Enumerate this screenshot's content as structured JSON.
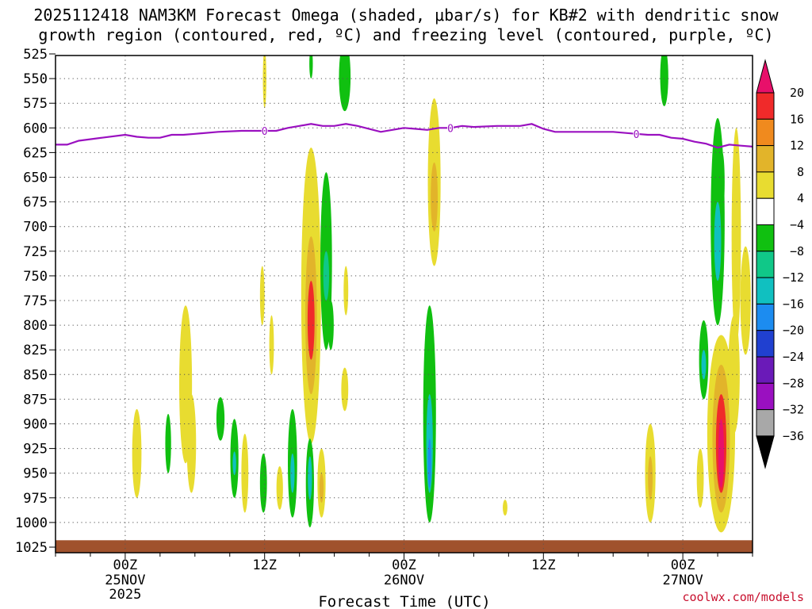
{
  "chart_data": {
    "type": "heatmap",
    "title": [
      "2025112418 NAM3KM Forecast Omega (shaded, μbar/s) for KB#2 with dendritic snow",
      "growth region (contoured, red, ºC) and freezing level (contoured, purple, ºC)"
    ],
    "xlabel": "Forecast Time (UTC)",
    "credit": "coolwx.com/models",
    "y_ticks": [
      "525",
      "550",
      "575",
      "600",
      "625",
      "650",
      "675",
      "700",
      "725",
      "750",
      "775",
      "800",
      "825",
      "850",
      "875",
      "900",
      "925",
      "950",
      "975",
      "1000",
      "1025"
    ],
    "y_values": [
      525,
      550,
      575,
      600,
      625,
      650,
      675,
      700,
      725,
      750,
      775,
      800,
      825,
      850,
      875,
      900,
      925,
      950,
      975,
      1000,
      1025
    ],
    "ylim": [
      525,
      1025
    ],
    "x_range_hours": [
      -6,
      54
    ],
    "x_ticks": [
      {
        "hour": 0,
        "label": "00Z",
        "date": "25NOV",
        "year": "2025"
      },
      {
        "hour": 12,
        "label": "12Z",
        "date": "",
        "year": ""
      },
      {
        "hour": 24,
        "label": "00Z",
        "date": "26NOV",
        "year": ""
      },
      {
        "hour": 36,
        "label": "12Z",
        "date": "",
        "year": ""
      },
      {
        "hour": 48,
        "label": "00Z",
        "date": "27NOV",
        "year": ""
      }
    ],
    "colorbar": {
      "levels": [
        "20",
        "16",
        "12",
        "8",
        "4",
        "−4",
        "−8",
        "−12",
        "−16",
        "−20",
        "−24",
        "−28",
        "−32",
        "−36"
      ],
      "colors": [
        "#e8106a",
        "#f02a2a",
        "#f08a1e",
        "#e2b42a",
        "#e8dc30",
        "#ffffff",
        "#10c010",
        "#10c888",
        "#10c0c0",
        "#1c8cf0",
        "#2040d0",
        "#6a1ab8",
        "#9a10c0",
        "#a8a8a8",
        "#000000"
      ]
    },
    "freezing_level": {
      "label": "0",
      "label_hours": [
        12,
        28,
        44
      ],
      "hours": [
        -6,
        -5,
        -4,
        -2,
        0,
        1,
        2,
        3,
        4,
        5,
        6,
        8,
        10,
        12,
        13,
        14,
        15,
        16,
        17,
        18,
        19,
        20,
        22,
        24,
        25,
        26,
        27,
        28,
        29,
        30,
        32,
        34,
        35,
        36,
        37,
        38,
        40,
        42,
        44,
        45,
        46,
        47,
        48,
        49,
        50,
        51,
        52,
        53,
        54
      ],
      "pressure": [
        617,
        617,
        613,
        610,
        607,
        609,
        610,
        610,
        607,
        607,
        606,
        604,
        603,
        603,
        603,
        600,
        598,
        596,
        598,
        598,
        596,
        598,
        604,
        600,
        601,
        602,
        600,
        600,
        598,
        599,
        598,
        598,
        596,
        601,
        604,
        604,
        604,
        604,
        606,
        607,
        607,
        610,
        611,
        614,
        616,
        620,
        617,
        618,
        619
      ]
    },
    "omega_blobs": [
      {
        "h": 12.0,
        "p": 550,
        "dh": 0.15,
        "dp": 30,
        "v": 5
      },
      {
        "h": 16.0,
        "p": 535,
        "dh": 0.15,
        "dp": 15,
        "v": -5
      },
      {
        "h": 18.9,
        "p": 548,
        "dh": 0.5,
        "dp": 35,
        "v": -6
      },
      {
        "h": 46.4,
        "p": 548,
        "dh": 0.35,
        "dp": 30,
        "v": -5
      },
      {
        "h": 26.6,
        "p": 655,
        "dh": 0.55,
        "dp": 85,
        "v": 6
      },
      {
        "h": 26.6,
        "p": 670,
        "dh": 0.3,
        "dp": 35,
        "v": 9
      },
      {
        "h": 16.0,
        "p": 770,
        "dh": 0.85,
        "dp": 150,
        "v": 6
      },
      {
        "h": 16.0,
        "p": 790,
        "dh": 0.5,
        "dp": 80,
        "v": 10
      },
      {
        "h": 16.0,
        "p": 795,
        "dh": 0.3,
        "dp": 40,
        "v": 18
      },
      {
        "h": 17.3,
        "p": 735,
        "dh": 0.5,
        "dp": 90,
        "v": -6
      },
      {
        "h": 17.3,
        "p": 750,
        "dh": 0.25,
        "dp": 25,
        "v": -10
      },
      {
        "h": 17.7,
        "p": 800,
        "dh": 0.25,
        "dp": 25,
        "v": -5
      },
      {
        "h": 19.0,
        "p": 765,
        "dh": 0.2,
        "dp": 25,
        "v": 5
      },
      {
        "h": 11.8,
        "p": 770,
        "dh": 0.2,
        "dp": 30,
        "v": 5
      },
      {
        "h": 12.6,
        "p": 820,
        "dh": 0.2,
        "dp": 30,
        "v": 5
      },
      {
        "h": 18.9,
        "p": 865,
        "dh": 0.3,
        "dp": 22,
        "v": 5
      },
      {
        "h": 26.2,
        "p": 890,
        "dh": 0.55,
        "dp": 110,
        "v": -6
      },
      {
        "h": 26.2,
        "p": 920,
        "dh": 0.28,
        "dp": 50,
        "v": -12
      },
      {
        "h": 26.2,
        "p": 940,
        "dh": 0.15,
        "dp": 25,
        "v": -16
      },
      {
        "h": 5.2,
        "p": 860,
        "dh": 0.55,
        "dp": 80,
        "v": 5
      },
      {
        "h": 5.7,
        "p": 920,
        "dh": 0.4,
        "dp": 50,
        "v": 5
      },
      {
        "h": 1.0,
        "p": 930,
        "dh": 0.4,
        "dp": 45,
        "v": 5
      },
      {
        "h": 3.7,
        "p": 920,
        "dh": 0.25,
        "dp": 30,
        "v": -6
      },
      {
        "h": 8.2,
        "p": 895,
        "dh": 0.35,
        "dp": 22,
        "v": -6
      },
      {
        "h": 9.4,
        "p": 935,
        "dh": 0.35,
        "dp": 40,
        "v": -6
      },
      {
        "h": 9.4,
        "p": 940,
        "dh": 0.15,
        "dp": 12,
        "v": -12
      },
      {
        "h": 10.3,
        "p": 950,
        "dh": 0.3,
        "dp": 40,
        "v": 5
      },
      {
        "h": 11.9,
        "p": 960,
        "dh": 0.3,
        "dp": 30,
        "v": -6
      },
      {
        "h": 13.3,
        "p": 965,
        "dh": 0.28,
        "dp": 22,
        "v": 5
      },
      {
        "h": 14.4,
        "p": 940,
        "dh": 0.4,
        "dp": 55,
        "v": -6
      },
      {
        "h": 14.4,
        "p": 950,
        "dh": 0.18,
        "dp": 20,
        "v": -12
      },
      {
        "h": 15.9,
        "p": 960,
        "dh": 0.35,
        "dp": 45,
        "v": -6
      },
      {
        "h": 15.9,
        "p": 955,
        "dh": 0.18,
        "dp": 22,
        "v": -12
      },
      {
        "h": 16.9,
        "p": 960,
        "dh": 0.35,
        "dp": 35,
        "v": 5
      },
      {
        "h": 16.9,
        "p": 965,
        "dh": 0.18,
        "dp": 15,
        "v": 9
      },
      {
        "h": 32.7,
        "p": 985,
        "dh": 0.2,
        "dp": 8,
        "v": 5
      },
      {
        "h": 45.2,
        "p": 950,
        "dh": 0.45,
        "dp": 50,
        "v": 5
      },
      {
        "h": 45.2,
        "p": 955,
        "dh": 0.2,
        "dp": 22,
        "v": 9
      },
      {
        "h": 49.5,
        "p": 955,
        "dh": 0.3,
        "dp": 30,
        "v": 5
      },
      {
        "h": 51.0,
        "p": 695,
        "dh": 0.6,
        "dp": 105,
        "v": -6
      },
      {
        "h": 51.0,
        "p": 715,
        "dh": 0.3,
        "dp": 40,
        "v": -12
      },
      {
        "h": 51.4,
        "p": 655,
        "dh": 0.2,
        "dp": 30,
        "v": -6
      },
      {
        "h": 52.6,
        "p": 710,
        "dh": 0.4,
        "dp": 110,
        "v": 5
      },
      {
        "h": 53.4,
        "p": 775,
        "dh": 0.45,
        "dp": 55,
        "v": 5
      },
      {
        "h": 51.3,
        "p": 910,
        "dh": 1.2,
        "dp": 100,
        "v": 6
      },
      {
        "h": 51.3,
        "p": 915,
        "dh": 0.75,
        "dp": 75,
        "v": 10
      },
      {
        "h": 51.3,
        "p": 920,
        "dh": 0.45,
        "dp": 50,
        "v": 16
      },
      {
        "h": 51.3,
        "p": 930,
        "dh": 0.25,
        "dp": 35,
        "v": 22
      },
      {
        "h": 52.4,
        "p": 850,
        "dh": 0.5,
        "dp": 60,
        "v": 5
      },
      {
        "h": 49.8,
        "p": 835,
        "dh": 0.4,
        "dp": 40,
        "v": -6
      },
      {
        "h": 49.8,
        "p": 840,
        "dh": 0.2,
        "dp": 15,
        "v": -12
      }
    ],
    "ground": {
      "pressure_top": 1018,
      "color": "#a0522d"
    }
  }
}
